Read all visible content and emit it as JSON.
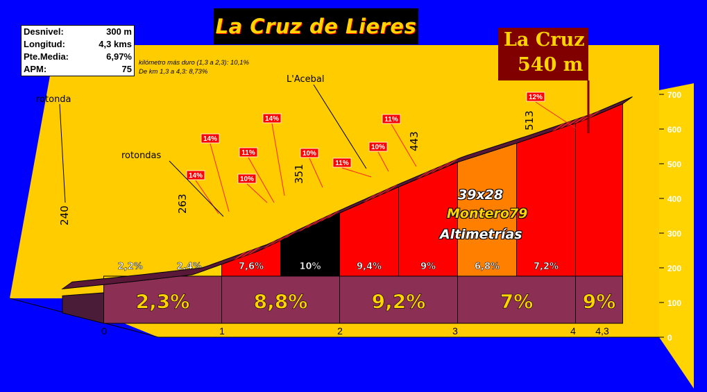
{
  "title": "La Cruz de Lieres",
  "stats": [
    {
      "label": "Desnivel:",
      "value": "300 m"
    },
    {
      "label": "Longitud:",
      "value": "4,3 kms"
    },
    {
      "label": "Pte.Media:",
      "value": "6,97%"
    },
    {
      "label": "APM:",
      "value": "75"
    }
  ],
  "notes": {
    "line1": "kilómetro más duro (1,3 a 2,3):   10,1%",
    "line2": "De km 1,3 a 4,3:    8,73%"
  },
  "summit": {
    "name": "La Cruz",
    "altitude": "540 m"
  },
  "credits": {
    "line1": "39x28",
    "line2": "Montero79",
    "line3": "Altimetrías"
  },
  "colors": {
    "background": "#0000ff",
    "wall": "#ffcc00",
    "km_band": "#8b2f55",
    "yellow": "#ffd400",
    "red": "#ff0000",
    "black": "#000000",
    "orange": "#ff7f00"
  },
  "chart_data": {
    "type": "area",
    "title": "La Cruz de Lieres",
    "x_ticks": [
      {
        "km": 0,
        "label": "0"
      },
      {
        "km": 1,
        "label": "1"
      },
      {
        "km": 2,
        "label": "2"
      },
      {
        "km": 3,
        "label": "3"
      },
      {
        "km": 4,
        "label": "4"
      },
      {
        "km": 4.3,
        "label": "4,3"
      }
    ],
    "y_ticks": [
      0,
      100,
      200,
      300,
      400,
      500,
      600,
      700
    ],
    "ylim": [
      0,
      700
    ],
    "profile": [
      {
        "km": 0,
        "alt": 240
      },
      {
        "km": 0.5,
        "alt": 251
      },
      {
        "km": 1,
        "alt": 263
      },
      {
        "km": 1.5,
        "alt": 301
      },
      {
        "km": 2,
        "alt": 351
      },
      {
        "km": 2.5,
        "alt": 398
      },
      {
        "km": 3,
        "alt": 443
      },
      {
        "km": 3.5,
        "alt": 477
      },
      {
        "km": 4,
        "alt": 513
      },
      {
        "km": 4.3,
        "alt": 540
      }
    ],
    "segments": [
      {
        "from": 0.0,
        "to": 0.5,
        "grade": "",
        "color": "#4a1c38"
      },
      {
        "from": 0.5,
        "to": 1.0,
        "grade": "2,2%",
        "color": "#ffd400"
      },
      {
        "from": 1.0,
        "to": 1.5,
        "grade": "2,4%",
        "color": "#ffd400"
      },
      {
        "from": 1.5,
        "to": 2.0,
        "grade": "7,6%",
        "color": "#ff0000"
      },
      {
        "from": 2.0,
        "to": 2.5,
        "grade": "10%",
        "color": "#000000"
      },
      {
        "from": 2.5,
        "to": 3.0,
        "grade": "9,4%",
        "color": "#ff0000"
      },
      {
        "from": 3.0,
        "to": 3.5,
        "grade": "9%",
        "color": "#ff0000"
      },
      {
        "from": 3.5,
        "to": 4.0,
        "grade": "6,8%",
        "color": "#ff7f00"
      },
      {
        "from": 4.0,
        "to": 4.5,
        "grade": "7,2%",
        "color": "#ff0000"
      },
      {
        "from": 4.5,
        "to": 4.8,
        "grade": "",
        "color": "#ff0000"
      }
    ],
    "km_grades": [
      "2,3%",
      "8,8%",
      "9,2%",
      "7%",
      "9%"
    ],
    "altitude_labels": [
      {
        "km": 0,
        "text": "240"
      },
      {
        "km": 1,
        "text": "263"
      },
      {
        "km": 2,
        "text": "351"
      },
      {
        "km": 3,
        "text": "443"
      },
      {
        "km": 4,
        "text": "513"
      }
    ],
    "ramp_labels": [
      "14%",
      "14%",
      "10%",
      "11%",
      "14%",
      "10%",
      "11%",
      "10%",
      "11%",
      "12%"
    ],
    "place_labels": [
      "rotonda",
      "rotondas",
      "L'Acebal"
    ]
  }
}
